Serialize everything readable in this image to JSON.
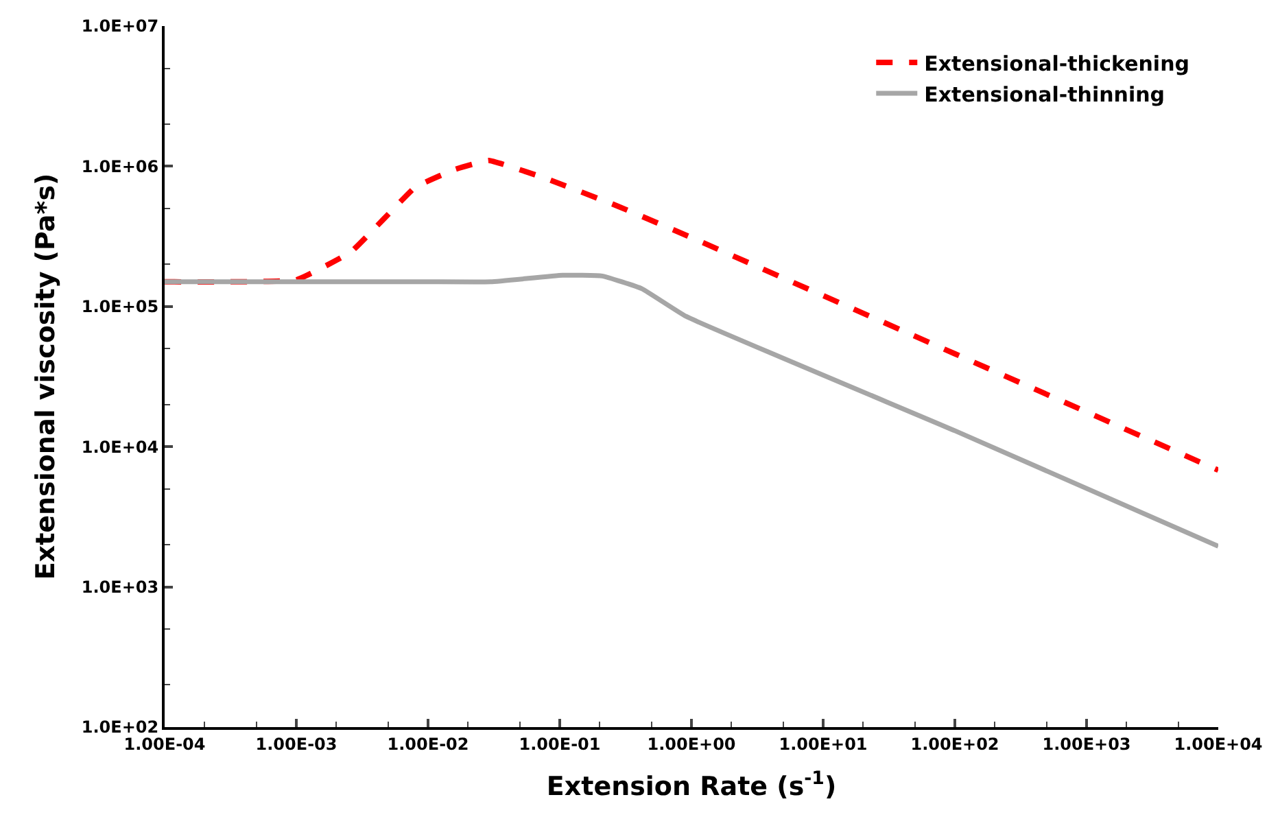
{
  "chart_data": {
    "type": "line",
    "xlabel": "Extension Rate (s$^{-1}$)",
    "ylabel": "Extensional viscosity (Pa*s)",
    "log": "xy",
    "legend": "top right",
    "marker": "none",
    "xlim": [
      0.0001,
      10000
    ],
    "ylim": [
      100,
      10000000
    ],
    "xticks": [
      {
        "value": 0.0001,
        "label": "1.00E-04"
      },
      {
        "value": 0.001,
        "label": "1.00E-03"
      },
      {
        "value": 0.01,
        "label": "1.00E-02"
      },
      {
        "value": 0.1,
        "label": "1.00E-01"
      },
      {
        "value": 1,
        "label": "1.00E+00"
      },
      {
        "value": 10,
        "label": "1.00E+01"
      },
      {
        "value": 100,
        "label": "1.00E+02"
      },
      {
        "value": 1000,
        "label": "1.00E+03"
      },
      {
        "value": 10000,
        "label": "1.00E+04"
      }
    ],
    "yticks": [
      {
        "value": 100,
        "label": "1.0E+02"
      },
      {
        "value": 1000,
        "label": "1.0E+03"
      },
      {
        "value": 10000,
        "label": "1.0E+04"
      },
      {
        "value": 100000,
        "label": "1.0E+05"
      },
      {
        "value": 1000000,
        "label": "1.0E+06"
      },
      {
        "value": 10000000,
        "label": "1.0E+07"
      }
    ],
    "series": [
      {
        "name": "Extensional-thickening",
        "color": "#ff0000",
        "line_style": "dashed",
        "x": [
          0.0001,
          0.001,
          0.0026,
          0.0046,
          0.008,
          0.016,
          0.029,
          0.081,
          0.275,
          1,
          100,
          10000
        ],
        "values": [
          150000,
          155000,
          245000,
          420000,
          710000,
          950000,
          1100000,
          810000,
          520000,
          310000,
          46000,
          6800
        ]
      },
      {
        "name": "Extensional-thinning",
        "color": "#a6a6a6",
        "line_style": "solid",
        "x": [
          0.0001,
          0.001,
          0.01,
          0.03,
          0.105,
          0.21,
          0.42,
          0.91,
          100,
          10000
        ],
        "values": [
          150000,
          150000,
          150000,
          150000,
          167000,
          165000,
          134000,
          85000,
          13000,
          1950
        ]
      }
    ]
  }
}
